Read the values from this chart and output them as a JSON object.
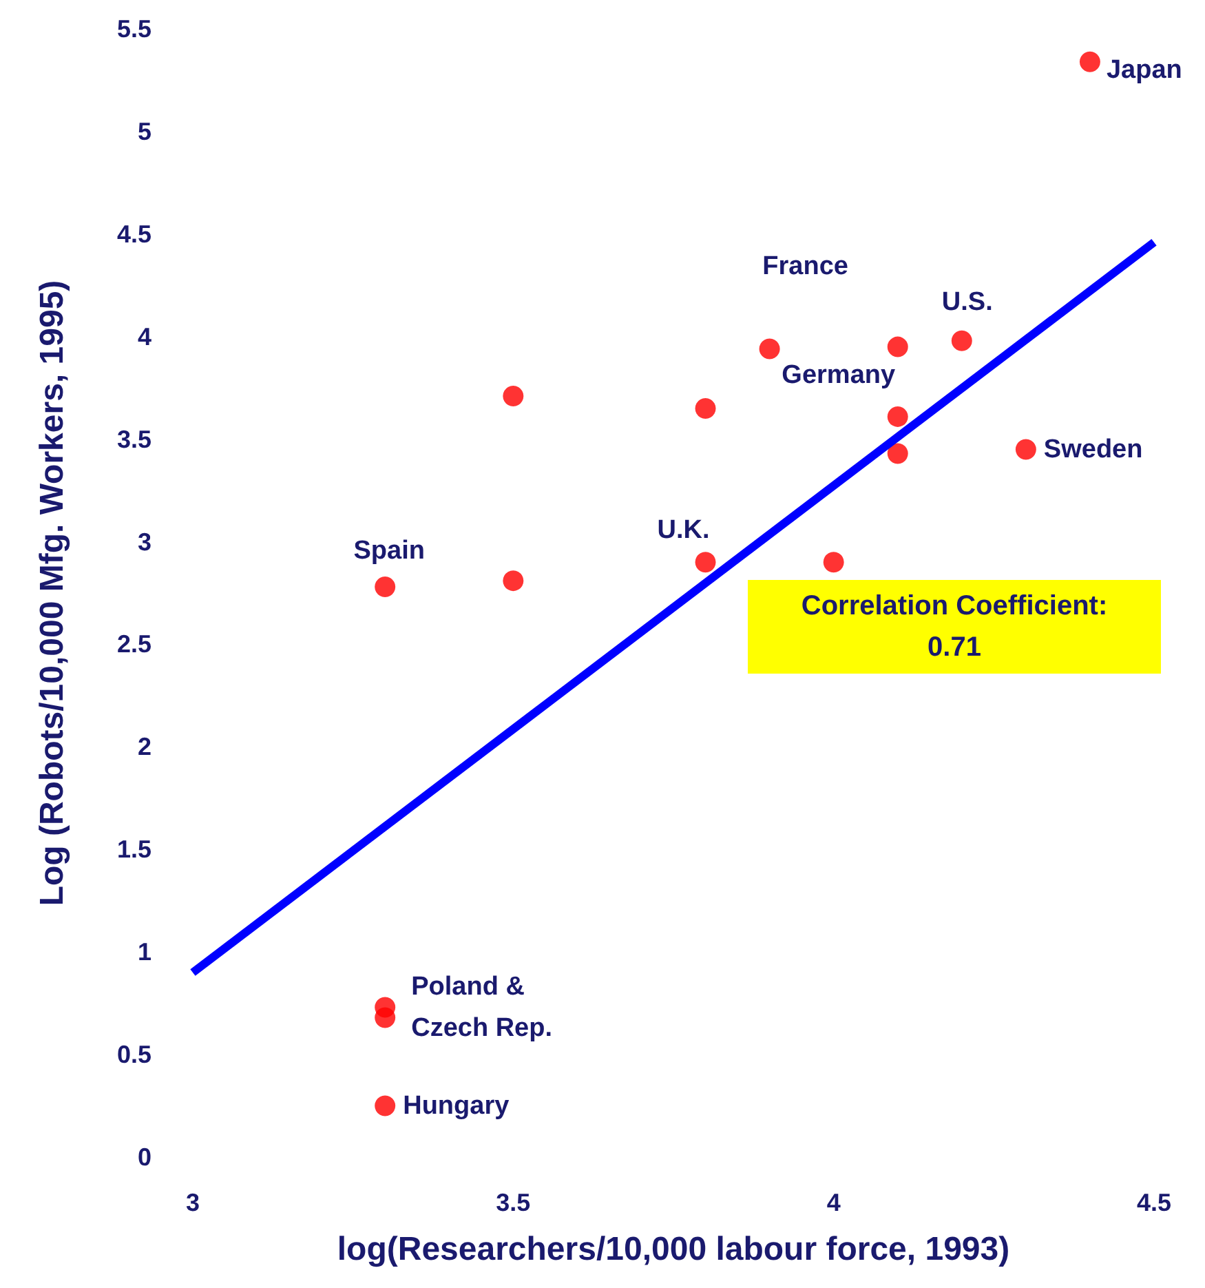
{
  "chart_data": {
    "type": "scatter",
    "xlabel": "log(Researchers/10,000 labour force, 1993)",
    "ylabel": "Log (Robots/10,000 Mfg. Workers, 1995)",
    "xlim": [
      3,
      4.5
    ],
    "xticks": [
      3,
      3.5,
      4,
      4.5
    ],
    "ylim": [
      0,
      5.5
    ],
    "yticks": [
      0,
      0.5,
      1,
      1.5,
      2,
      2.5,
      3,
      3.5,
      4,
      4.5,
      5,
      5.5
    ],
    "grid": false,
    "series": [
      {
        "color": "#ff0000",
        "marker": "circle",
        "x": [
          4.4,
          4.2,
          4.3,
          3.9,
          4.1,
          4.1,
          4.1,
          3.8,
          3.5,
          3.5,
          3.8,
          4.0,
          3.3,
          3.3,
          3.3,
          3.3
        ],
        "values": [
          5.34,
          3.98,
          3.45,
          3.94,
          3.95,
          3.61,
          3.43,
          3.65,
          3.71,
          2.81,
          2.9,
          2.9,
          2.78,
          0.73,
          0.68,
          0.25
        ]
      },
      {
        "type": "line",
        "color": "#0000ff",
        "x": [
          3,
          4.5
        ],
        "values": [
          0.9,
          4.46
        ]
      }
    ],
    "annotations": [
      {
        "text": "Japan",
        "x": 4.4,
        "y": 5.34
      },
      {
        "text": "France",
        "x": 3.9,
        "y": 3.94
      },
      {
        "text": "U.S.",
        "x": 4.2,
        "y": 3.98
      },
      {
        "text": "Germany",
        "x": 4.1,
        "y": 3.61
      },
      {
        "text": "Sweden",
        "x": 4.3,
        "y": 3.45
      },
      {
        "text": "Spain",
        "x": 3.3,
        "y": 2.78
      },
      {
        "text": "U.K.",
        "x": 3.8,
        "y": 2.9
      },
      {
        "text": "Poland &\nCzech Rep.",
        "x": 3.3,
        "y": 0.73
      },
      {
        "text": "Hungary",
        "x": 3.3,
        "y": 0.25
      },
      "Correlation Coefficient:\n0.71"
    ]
  }
}
